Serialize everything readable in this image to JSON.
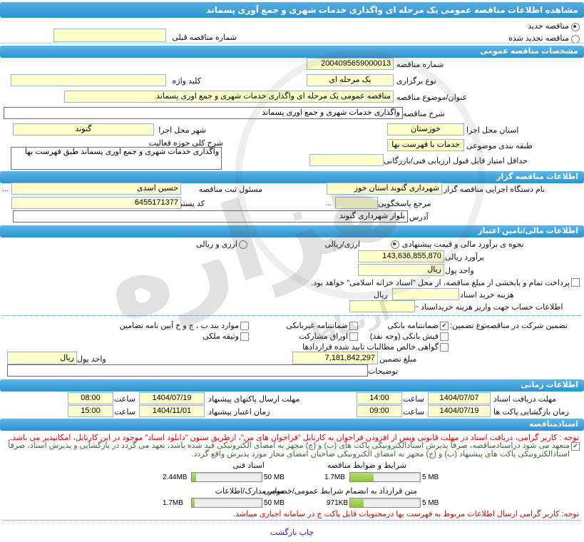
{
  "header": {
    "title": "مشاهده اطلاعات مناقصه عمومی یک مرحله ای واگذاری خدمات شهری و جمع آوری پسماند"
  },
  "top": {
    "radio_new": "مناقصه جدید",
    "radio_renewed": "مناقصه تجدید شده",
    "prev_no_label": "شماره مناقصه قبلی",
    "prev_no_value": "--"
  },
  "general": {
    "section": "مشخصات مناقصه عمومی",
    "tender_no_label": "شماره مناقصه",
    "tender_no": "2004095659000013",
    "type_label": "نوع برگزاری",
    "type_value": "یک مرحله ای",
    "keyword_label": "کلید واژه",
    "keyword_value": "",
    "title_label": "عنوان/موضوع مناقصه",
    "title_value": "مناقصه عمومی یک مرحله ای واگذاری خدمات شهری و جمع اوری پسماند",
    "desc_label": "شرح مناقصه",
    "desc_value": "واگذاری خدمات شهری و جمع اوری پسماند",
    "province_label": "استان محل اجرا",
    "province_value": "خوزستان",
    "city_label": "شهر محل اجرا",
    "city_value": "گتوند",
    "category_label": "طبقه بندی موضوعی",
    "category_value": "خدمات با فهرست بها",
    "activity_label": "شرح کلی حوزه فعالیت",
    "activity_value": "واگذاری خدمات شهری و جمع اوری پسماند طبق فهرست بها",
    "min_score_label": "حداقل امتیاز قابل قبول ارزیابی فنی/بازرگانی"
  },
  "employer": {
    "section": "اطلاعات مناقصه گزار",
    "agency_label": "نام دستگاه اجرایی مناقصه گزار",
    "agency_value": "شهرداری گتوند استان خوز",
    "registrar_label": "مسئول ثبت مناقصه",
    "registrar_value": "حسین اسدی",
    "ellipsis": "...",
    "contact_label": "مرجع پاسخگویی",
    "contact_value": "",
    "postal_label": "کد پستی",
    "postal_value": "6455171377",
    "address_label": "آدرس",
    "address_value": "بلوار شهرداری گتوند"
  },
  "financial": {
    "section": "اطلاعات مالی/تامین اعتبار",
    "estimate_mode_label": "نحوه ی برآورد مالی و قیمت پیشنهادی",
    "mode_rial": "ارزی/ریالی",
    "mode_both": "ارزی و ریالی",
    "rial_estimate_label": "برآورد ریالی",
    "rial_estimate": "143,636,855,870",
    "currency_label": "واحد پول",
    "currency_value": "ریال",
    "treasury_note": "پرداخت تمام و یابخشی از مبلغ مناقصه، از محل \"اسناد خزانه اسلامی\" خواهد بود.",
    "doc_fee_label": "هزینه خرید اسناد",
    "doc_fee_unit": "ریال",
    "account_label": "اطلاعات حساب جهت واریز هزینه خریداسناد",
    "account_value": "--"
  },
  "guarantee": {
    "title": "تضمین شرکت در مناقصه:",
    "type_label": "نوع تضمین:",
    "opt_bank": "ضمانتنامه بانکی",
    "opt_nonbank": "ضمانتنامه غیربانکی",
    "opt_band": "موارد بند ب ، ج و خ آیین نامه تضامین",
    "opt_cash": "فیش بانکی (وجه نقد)",
    "opt_bonds": "اوراق مشارکت",
    "opt_estate": "وثیقه ملکی",
    "opt_claims": "گواهی خالص مطالبات تایید شده قراردادها",
    "bank_checked": true,
    "amount_label": "مبلغ تضمین",
    "amount_value": "7,181,842,297",
    "currency_label": "واحد پول",
    "currency_value": "ریال",
    "notes_label": "توضیحات",
    "notes_value": ""
  },
  "timing": {
    "section": "اطلاعات زمانی",
    "hour_label": "ساعت",
    "rows": [
      {
        "label_r": "مهلت دریافت اسناد",
        "date_r": "1404/07/07",
        "time_r": "14:00",
        "label_l": "مهلت ارسال پاکتهای پیشنهاد",
        "date_l": "1404/07/19",
        "time_l": "08:00"
      },
      {
        "label_r": "زمان بازگشایی پاکت ها",
        "date_r": "1404/07/19",
        "time_r": "09:00",
        "label_l": "زمان اعتبار پیشنهاد",
        "date_l": "1404/11/01",
        "time_l": "15:00"
      }
    ]
  },
  "docs": {
    "section": "اسنادمناقصه",
    "note1": "توجه : کاربر گرامی، دریافت اسناد در مهلت قانونی وپس از افزودن فراخوان به کارتابل \"فراخوان های من\"،  ازطریق ستون \"دانلود اسناد\" موجود در این کارتابل، امکانپذیر می باشد.",
    "commitment": "متعهد می شود دراسنادمناقصه، صرفاً پذیرش اسنادالکترونیکی پاکت های (ب) و (ج) مجهز به امضای الکترونیکی قید شده باشد، تعهد می گردد در بازگشایی و پذیرش اسناد، صرفاً اسنادالکترونیکی پاکت های پیشنهاد (ب) و (ج) مجهز به امضای الکترونیکی صاحبان امضای مجاز مورد پذیرش واقع گردد.",
    "commitment_checked": true,
    "files": [
      {
        "label": "شرایط و ضوابط مناقصه",
        "size": "1.7MB",
        "max": "5 MB",
        "fill": 34
      },
      {
        "label": "اسناد فنی",
        "size": "2.44MB",
        "max": "50 MB",
        "fill": 6
      },
      {
        "label": "متن قرارداد به انضمام شرایط عمومی/خصوصی",
        "size": "971KB",
        "max": "5 MB",
        "fill": 19
      },
      {
        "label": "سایر مدارک/اطلاعات",
        "size": "1.7MB",
        "max": "50 MB",
        "fill": 4
      }
    ],
    "note2": "توجه: کاربر گرامی ارسال اطلاعات مربوط به فهرست بها درمحتویات فایل پاکت ج در سامانه اجباری میباشد."
  },
  "footer": {
    "print": "چاپ",
    "back": "بازگشت"
  },
  "watermark": {
    "main": "هزاره",
    "sub": "ارتباط"
  },
  "colors": {
    "section_bar": "#3e9fd9",
    "input_yellow": "#ffffcc",
    "progress_green": "#8cc63e",
    "note_red": "#e60000",
    "commitment_green": "#3c6b2f",
    "link_blue": "#1a1aee"
  }
}
